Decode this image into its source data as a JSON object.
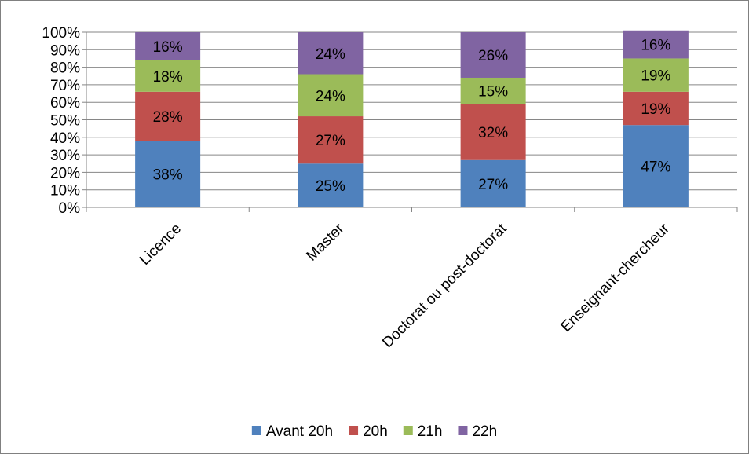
{
  "chart_data": {
    "type": "bar",
    "stacked": true,
    "percent_stacked": true,
    "categories": [
      "Licence",
      "Master",
      "Doctorat ou post-doctorat",
      "Enseignant-chercheur"
    ],
    "series": [
      {
        "name": "Avant 20h",
        "values": [
          38,
          25,
          27,
          47
        ],
        "labels": [
          "38%",
          "25%",
          "27%",
          "47%"
        ],
        "color": "#4F81BD"
      },
      {
        "name": "20h",
        "values": [
          28,
          27,
          32,
          19
        ],
        "labels": [
          "28%",
          "27%",
          "32%",
          "19%"
        ],
        "color": "#C0504D"
      },
      {
        "name": "21h",
        "values": [
          18,
          24,
          15,
          19
        ],
        "labels": [
          "18%",
          "24%",
          "15%",
          "19%"
        ],
        "color": "#9BBB59"
      },
      {
        "name": "22h",
        "values": [
          16,
          24,
          26,
          16
        ],
        "labels": [
          "16%",
          "24%",
          "26%",
          "16%"
        ],
        "color": "#8064A2"
      }
    ],
    "y_ticks": [
      "0%",
      "10%",
      "20%",
      "30%",
      "40%",
      "50%",
      "60%",
      "70%",
      "80%",
      "90%",
      "100%"
    ],
    "ylim": [
      0,
      100
    ],
    "grid": true,
    "legend_position": "bottom",
    "category_label_rotation": "rotated 45 degrees"
  }
}
